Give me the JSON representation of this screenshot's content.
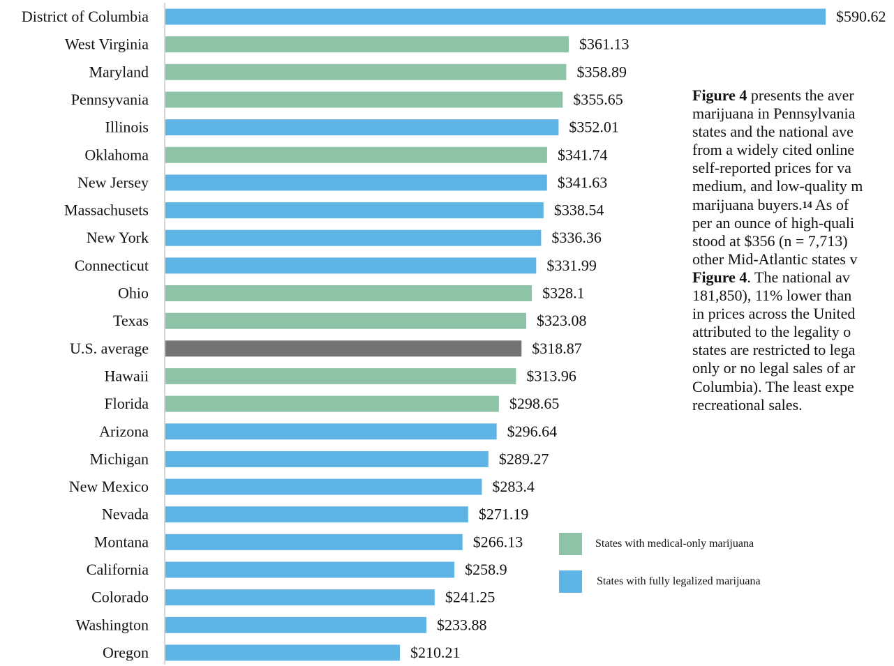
{
  "chart_data": {
    "type": "bar",
    "orientation": "horizontal",
    "categories": [
      "District of Columbia",
      "West Virginia",
      "Maryland",
      "Pennsyvania",
      "Illinois",
      "Oklahoma",
      "New Jersey",
      "Massachusets",
      "New York",
      "Connecticut",
      "Ohio",
      "Texas",
      "U.S. average",
      "Hawaii",
      "Florida",
      "Arizona",
      "Michigan",
      "New Mexico",
      "Nevada",
      "Montana",
      "California",
      "Colorado",
      "Washington",
      "Oregon"
    ],
    "values": [
      590.62,
      361.13,
      358.89,
      355.65,
      352.01,
      341.74,
      341.63,
      338.54,
      336.36,
      331.99,
      328.1,
      323.08,
      318.87,
      313.96,
      298.65,
      296.64,
      289.27,
      283.4,
      271.19,
      266.13,
      258.9,
      241.25,
      233.88,
      210.21
    ],
    "value_labels": [
      "$590.62",
      "$361.13",
      "$358.89",
      "$355.65",
      "$352.01",
      "$341.74",
      "$341.63",
      "$338.54",
      "$336.36",
      "$331.99",
      "$328.1",
      "$323.08",
      "$318.87",
      "$313.96",
      "$298.65",
      "$296.64",
      "$289.27",
      "$283.4",
      "$271.19",
      "$266.13",
      "$258.9",
      "$241.25",
      "$233.88",
      "$210.21"
    ],
    "groups": [
      "fully-legalized",
      "medical-only",
      "medical-only",
      "medical-only",
      "fully-legalized",
      "medical-only",
      "fully-legalized",
      "fully-legalized",
      "fully-legalized",
      "fully-legalized",
      "medical-only",
      "medical-only",
      "average",
      "medical-only",
      "medical-only",
      "fully-legalized",
      "fully-legalized",
      "fully-legalized",
      "fully-legalized",
      "fully-legalized",
      "fully-legalized",
      "fully-legalized",
      "fully-legalized",
      "fully-legalized"
    ],
    "xlim": [
      0,
      590.62
    ],
    "grid": false,
    "legend_position": "bottom-right",
    "legend": [
      {
        "key": "medical-only",
        "label": "States with medical-only marijuana"
      },
      {
        "key": "fully-legalized",
        "label": "States with fully legalized marijuana"
      }
    ]
  },
  "colors": {
    "medical-only": "#8fc3a7",
    "fully-legalized": "#5eb4e4",
    "average": "#737373",
    "axis": "#c8c8c8"
  },
  "paragraph": {
    "lines": [
      [
        {
          "t": "Figure 4",
          "b": true
        },
        {
          "t": " presents the aver"
        }
      ],
      [
        {
          "t": "marijuana in Pennsylvania"
        }
      ],
      [
        {
          "t": "states and the national ave"
        }
      ],
      [
        {
          "t": "from a widely cited online"
        }
      ],
      [
        {
          "t": "self-reported prices for va"
        }
      ],
      [
        {
          "t": "medium, and low-quality m"
        }
      ],
      [
        {
          "t": "marijuana buyers."
        },
        {
          "t": "14",
          "sup": true
        },
        {
          "t": " As of"
        }
      ],
      [
        {
          "t": "per an ounce of high-quali"
        }
      ],
      [
        {
          "t": "stood at $356 (n = 7,713)"
        }
      ],
      [
        {
          "t": "other Mid-Atlantic states v"
        }
      ],
      [
        {
          "t": "Figure 4",
          "b": true
        },
        {
          "t": ".  The national av"
        }
      ],
      [
        {
          "t": "181,850), 11% lower than"
        }
      ],
      [
        {
          "t": "in prices across the United"
        }
      ],
      [
        {
          "t": "attributed to the legality o"
        }
      ],
      [
        {
          "t": "states are restricted to lega"
        }
      ],
      [
        {
          "t": "only or no legal sales of ar"
        }
      ],
      [
        {
          "t": "Columbia). The least expe"
        }
      ],
      [
        {
          "t": "recreational sales."
        }
      ]
    ]
  }
}
